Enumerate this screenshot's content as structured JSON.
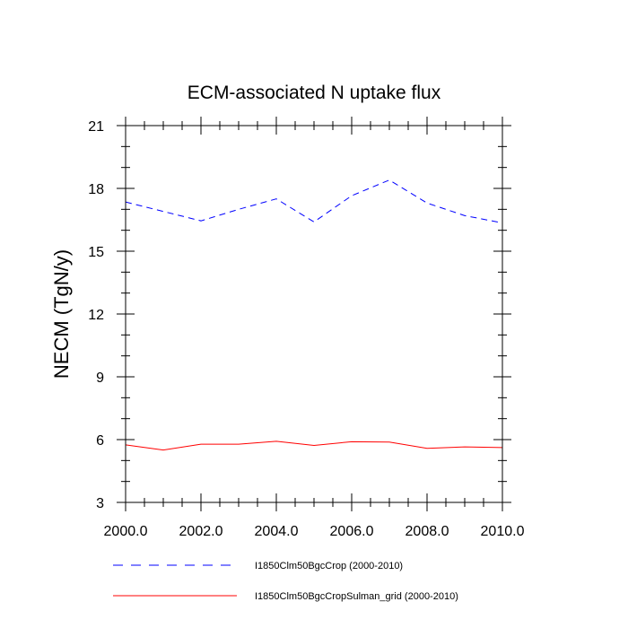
{
  "chart_data": {
    "type": "line",
    "title": "ECM-associated N uptake flux",
    "xlabel": "",
    "ylabel": "NECM  (TgN/y)",
    "xlim": [
      2000,
      2010
    ],
    "ylim": [
      3,
      21
    ],
    "x_ticks": [
      "2000.0",
      "2002.0",
      "2004.0",
      "2006.0",
      "2008.0",
      "2010.0"
    ],
    "y_ticks": [
      "3",
      "6",
      "9",
      "12",
      "15",
      "18",
      "21"
    ],
    "x": [
      2000,
      2001,
      2002,
      2003,
      2004,
      2005,
      2006,
      2007,
      2008,
      2009,
      2010
    ],
    "grid": false,
    "legend_position": "bottom",
    "series": [
      {
        "name": "I1850Clm50BgcCrop (2000-2010)",
        "color": "#0000ff",
        "style": "dashed",
        "values": [
          17.35,
          16.9,
          16.45,
          17.0,
          17.5,
          16.4,
          17.65,
          18.4,
          17.3,
          16.7,
          16.35
        ]
      },
      {
        "name": "I1850Clm50BgcCropSulman_grid (2000-2010)",
        "color": "#ff0000",
        "style": "solid",
        "values": [
          5.75,
          5.5,
          5.78,
          5.78,
          5.92,
          5.72,
          5.9,
          5.88,
          5.58,
          5.65,
          5.62
        ]
      }
    ]
  }
}
